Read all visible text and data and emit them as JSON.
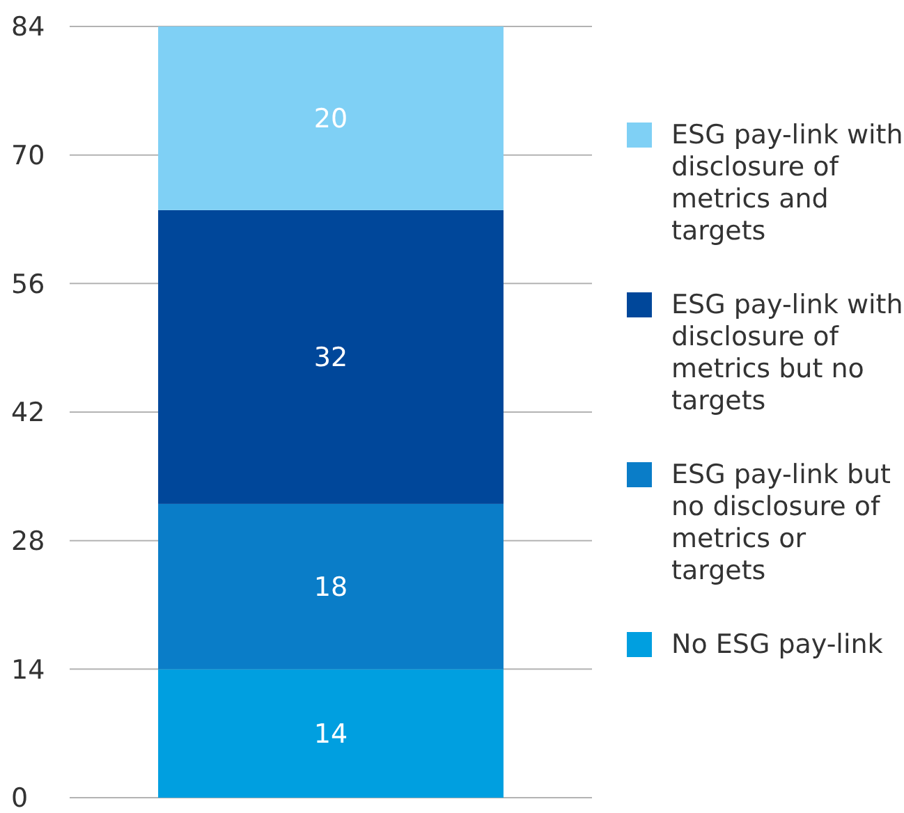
{
  "chart_data": {
    "type": "bar",
    "stacked": true,
    "categories": [
      null
    ],
    "series": [
      {
        "name": "No ESG pay-link",
        "color": "#009fe0",
        "values": [
          14
        ]
      },
      {
        "name": "ESG pay-link but no disclosure of metrics or targets",
        "color": "#0a7dc8",
        "values": [
          18
        ]
      },
      {
        "name": "ESG pay-link with disclosure of metrics but no targets",
        "color": "#00479a",
        "values": [
          32
        ]
      },
      {
        "name": "ESG pay-link with disclosure of metrics and targets",
        "color": "#7fd0f5",
        "values": [
          20
        ]
      }
    ],
    "ylim": [
      0,
      84
    ],
    "yticks": [
      0,
      14,
      28,
      42,
      56,
      70,
      84
    ],
    "grid": "y",
    "legend": "right",
    "data_labels": true
  }
}
